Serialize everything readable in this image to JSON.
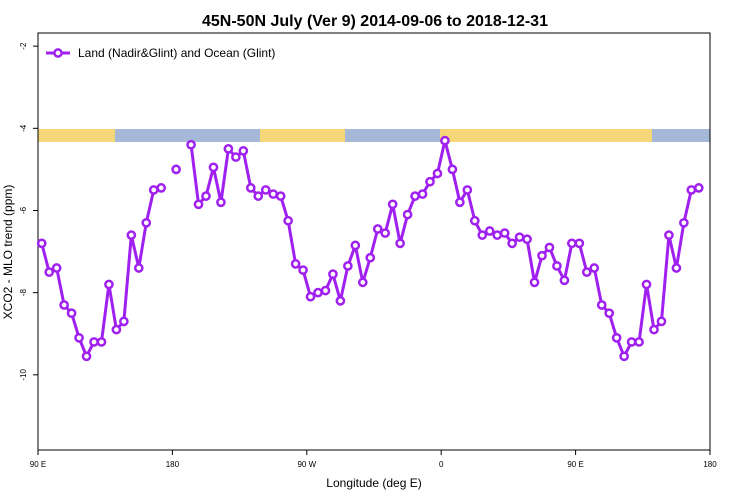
{
  "chart_data": {
    "type": "line",
    "title": "45N-50N July (Ver 9)   2014-09-06 to 2018-12-31",
    "x_label": "Longitude (deg E)",
    "y_label": "XCO2 - MLO trend (ppm)",
    "x": [
      92.5,
      97.5,
      102.5,
      107.5,
      112.5,
      117.5,
      122.5,
      127.5,
      132.5,
      137.5,
      142.5,
      147.5,
      152.5,
      157.5,
      162.5,
      167.5,
      172.5,
      177.5,
      182.5,
      187.5,
      192.5,
      197.5,
      202.5,
      207.5,
      212.5,
      217.5,
      222.5,
      227.5,
      232.5,
      237.5,
      242.5,
      247.5,
      252.5,
      257.5,
      262.5,
      267.5,
      272.5,
      277.5,
      282.5,
      287.5,
      292.5,
      297.5,
      302.5,
      307.5,
      312.5,
      317.5,
      322.5,
      327.5,
      332.5,
      337.5,
      342.5,
      347.5,
      352.5,
      357.5,
      362.5,
      367.5,
      372.5,
      377.5,
      382.5,
      387.5,
      392.5,
      397.5,
      402.5,
      407.5,
      412.5,
      417.5,
      422.5,
      427.5,
      432.5,
      437.5,
      442.5,
      447.5,
      452.5,
      457.5,
      462.5,
      467.5,
      472.5,
      477.5,
      482.5,
      487.5,
      492.5,
      497.5,
      502.5,
      507.5,
      512.5,
      517.5,
      522.5,
      527.5,
      532.5
    ],
    "series": [
      {
        "name": "Land (Nadir&Glint) and Ocean (Glint)",
        "color": "#a020f0",
        "values": [
          -6.8,
          -7.5,
          -7.4,
          -8.3,
          -8.5,
          -9.1,
          -9.55,
          -9.2,
          -9.2,
          -7.8,
          -8.9,
          -8.7,
          -6.6,
          -7.4,
          -6.3,
          -5.5,
          -5.45,
          null,
          -5.0,
          null,
          -4.4,
          -5.85,
          -5.65,
          -4.95,
          -5.8,
          -4.5,
          -4.7,
          -4.55,
          -5.45,
          -5.65,
          -5.5,
          -5.6,
          -5.65,
          -6.25,
          -7.3,
          -7.45,
          -8.1,
          -8.0,
          -7.95,
          -7.55,
          -8.2,
          -7.35,
          -6.85,
          -7.75,
          -7.15,
          -6.45,
          -6.55,
          -5.85,
          -6.8,
          -6.1,
          -5.65,
          -5.6,
          -5.3,
          -5.1,
          -4.3,
          -5.0,
          -5.8,
          -5.5,
          -6.25,
          -6.6,
          -6.5,
          -6.6,
          -6.55,
          -6.8,
          -6.65,
          -6.7,
          -7.75,
          -7.1,
          -6.9,
          -7.35,
          -7.7,
          -6.8,
          -6.8,
          -7.5,
          -7.4,
          -8.3,
          -8.5,
          -9.1,
          -9.55,
          -9.2,
          -9.2,
          -7.8,
          -8.9,
          -8.7,
          -6.6,
          -7.4,
          -6.3,
          -5.5,
          -5.45
        ]
      }
    ],
    "xlim": [
      90,
      540
    ],
    "xticks": [
      {
        "value": 90,
        "label": "90 E"
      },
      180,
      {
        "value": 270,
        "label": "90 W"
      },
      {
        "value": 360,
        "label": "0"
      },
      {
        "value": 450,
        "label": "90 E"
      },
      {
        "value": 540,
        "label": "180"
      }
    ],
    "ylim": [
      -11.83,
      -1.68
    ],
    "yticks": [
      -2,
      -4,
      -6,
      -8,
      -10
    ],
    "legend": "top-left"
  }
}
